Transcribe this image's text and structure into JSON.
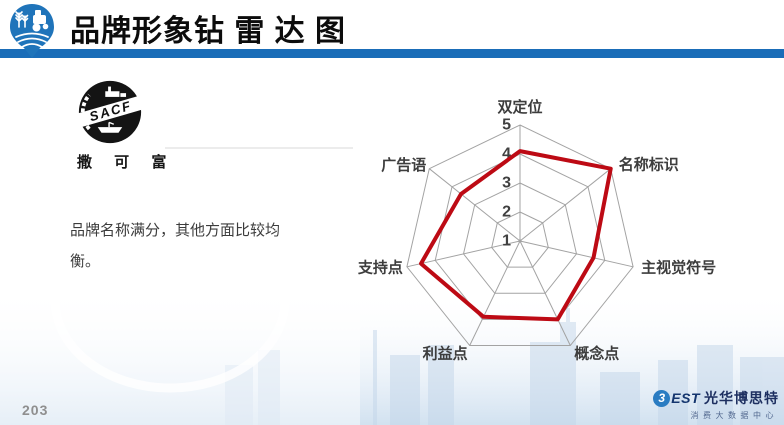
{
  "header": {
    "title": "品牌形象钻 雷 达 图"
  },
  "sacf": {
    "acronym": "SACF",
    "name": "撒 可 富"
  },
  "note": "品牌名称满分，其他方面比较均衡。",
  "chart_data": {
    "type": "radar",
    "categories": [
      "双定位",
      "名称标识",
      "主视觉符号",
      "概念点",
      "利益点",
      "支持点",
      "广告语"
    ],
    "values": [
      4.1,
      5,
      3.6,
      4,
      3.9,
      4.5,
      3.6
    ],
    "axis": {
      "min": 1,
      "max": 5,
      "tick_labels": [
        "1",
        "2",
        "3",
        "4",
        "5"
      ]
    },
    "grid": true,
    "legend": false,
    "series_color": "#bd0a14",
    "grid_color": "#a3a3a3",
    "label_color": "#3d3d3d",
    "tick_color": "#404040"
  },
  "footer": {
    "page_number": "203",
    "brand": {
      "bubble_glyph": "3",
      "rest": "EST",
      "cn": "光华博思特",
      "subtitle": "消费大数据中心"
    }
  },
  "colors": {
    "header_bar": "#1a6db8",
    "series_red": "#bd0a14"
  }
}
